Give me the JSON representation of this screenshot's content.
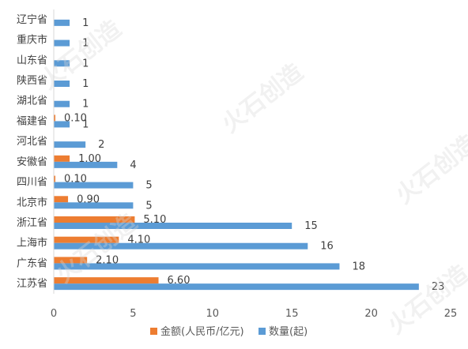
{
  "chart_data": {
    "type": "bar",
    "orientation": "horizontal",
    "categories": [
      "辽宁省",
      "重庆市",
      "山东省",
      "陕西省",
      "湖北省",
      "福建省",
      "河北省",
      "安徽省",
      "四川省",
      "北京市",
      "浙江省",
      "上海市",
      "广东省",
      "江苏省"
    ],
    "series": [
      {
        "name": "金额(人民币/亿元)",
        "color": "#ed7d31",
        "values": [
          null,
          null,
          null,
          null,
          null,
          0.1,
          null,
          1.0,
          0.1,
          0.9,
          5.1,
          4.1,
          2.1,
          6.6
        ],
        "labels": [
          "",
          "",
          "",
          "",
          "",
          "0.10",
          "",
          "1.00",
          "0.10",
          "0.90",
          "5.10",
          "4.10",
          "2.10",
          "6.60"
        ]
      },
      {
        "name": "数量(起)",
        "color": "#5b9bd5",
        "values": [
          1,
          1,
          1,
          1,
          1,
          1,
          2,
          4,
          5,
          5,
          15,
          16,
          18,
          23
        ],
        "labels": [
          "1",
          "1",
          "1",
          "1",
          "1",
          "1",
          "2",
          "4",
          "5",
          "5",
          "15",
          "16",
          "18",
          "23"
        ]
      }
    ],
    "xlim": [
      0,
      25
    ],
    "x_ticks": [
      "0",
      "5",
      "10",
      "15",
      "20",
      "25"
    ],
    "grid": false,
    "legend_position": "bottom",
    "watermark": "火石创造"
  }
}
